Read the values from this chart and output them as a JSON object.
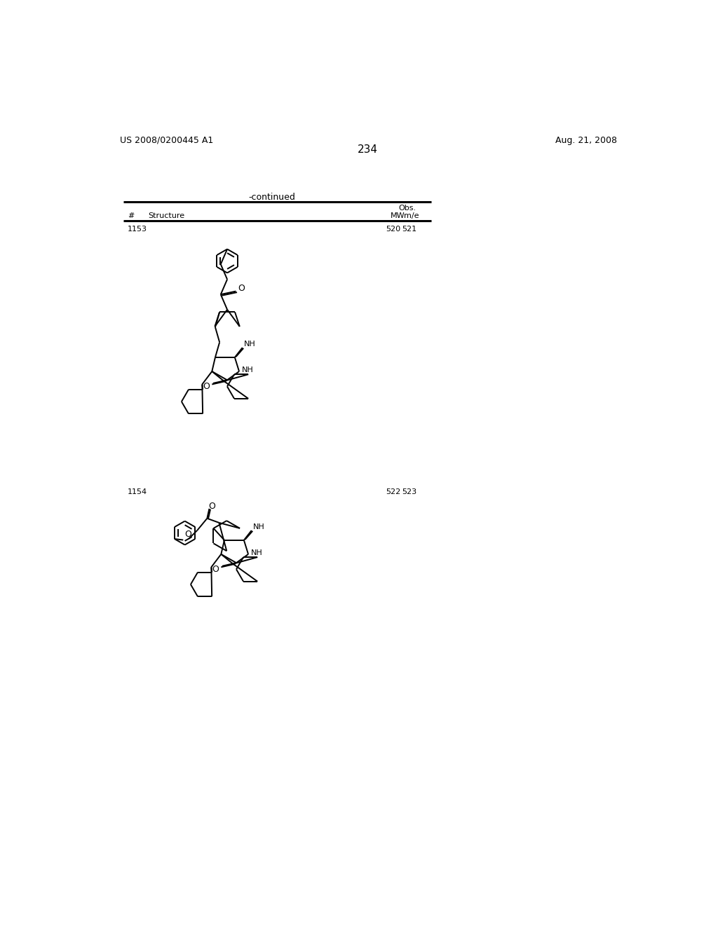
{
  "page_number": "234",
  "left_header": "US 2008/0200445 A1",
  "right_header": "Aug. 21, 2008",
  "continued_text": "-continued",
  "background_color": "#ffffff",
  "comp1_number": "1153",
  "comp1_mw": "520",
  "comp1_obs": "521",
  "comp2_number": "1154",
  "comp2_mw": "522",
  "comp2_obs": "523"
}
